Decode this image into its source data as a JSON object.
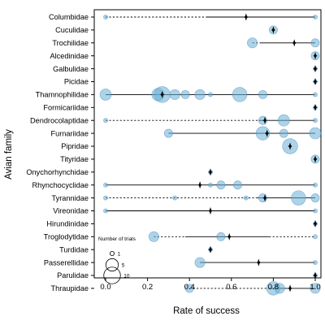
{
  "chart_data": {
    "type": "scatter",
    "xlabel": "Rate of success",
    "ylabel": "Avian family",
    "xlim": [
      0,
      1
    ],
    "xticks": [
      "0.0",
      "0.2",
      "0.4",
      "0.6",
      "0.8",
      "1.0"
    ],
    "xtick_values": [
      0,
      0.2,
      0.4,
      0.6,
      0.8,
      1.0
    ],
    "grid": false,
    "legend": {
      "title": "Number of trials",
      "placement": "bottom-left",
      "entries": [
        {
          "label": "1",
          "size": 1
        },
        {
          "label": "5",
          "size": 5
        },
        {
          "label": "10",
          "size": 10
        }
      ]
    },
    "colors": {
      "point_fill": "#6aaed6",
      "point_stroke": "#3a85c0",
      "median_marker": "#000000",
      "line": "#000000"
    },
    "families": [
      {
        "name": "Columbidae",
        "median": 0.67,
        "range": [
          0,
          1
        ],
        "dashed_to": 0.48,
        "points": [
          {
            "x": 0,
            "n": 1
          },
          {
            "x": 1,
            "n": 1
          }
        ]
      },
      {
        "name": "Cuculidae",
        "median": 0.8,
        "range": [
          0.8,
          0.8
        ],
        "dashed_to": null,
        "points": [
          {
            "x": 0.8,
            "n": 2
          }
        ]
      },
      {
        "name": "Trochilidae",
        "median": 0.9,
        "range": [
          0.7,
          1
        ],
        "dashed_to": 0.74,
        "points": [
          {
            "x": 0.7,
            "n": 3
          },
          {
            "x": 1,
            "n": 2
          }
        ]
      },
      {
        "name": "Alcedinidae",
        "median": 1.0,
        "range": [
          1,
          1
        ],
        "dashed_to": null,
        "points": [
          {
            "x": 1,
            "n": 2
          }
        ]
      },
      {
        "name": "Galbulidae",
        "median": 1.0,
        "range": [
          1,
          1
        ],
        "dashed_to": null,
        "points": [
          {
            "x": 1,
            "n": 1
          }
        ]
      },
      {
        "name": "Picidae",
        "median": 1.0,
        "range": [
          1,
          1
        ],
        "dashed_to": null,
        "points": [
          {
            "x": 1,
            "n": 1
          }
        ]
      },
      {
        "name": "Thamnophilidae",
        "median": 0.27,
        "range": [
          0,
          1
        ],
        "dashed_to": null,
        "points": [
          {
            "x": 0,
            "n": 4
          },
          {
            "x": 0.25,
            "n": 5
          },
          {
            "x": 0.27,
            "n": 9
          },
          {
            "x": 0.33,
            "n": 3
          },
          {
            "x": 0.38,
            "n": 2
          },
          {
            "x": 0.45,
            "n": 3
          },
          {
            "x": 0.5,
            "n": 1
          },
          {
            "x": 0.64,
            "n": 7
          },
          {
            "x": 0.75,
            "n": 2
          },
          {
            "x": 1,
            "n": 1
          }
        ]
      },
      {
        "name": "Formicariidae",
        "median": 1.0,
        "range": [
          1,
          1
        ],
        "dashed_to": null,
        "points": [
          {
            "x": 1,
            "n": 1
          }
        ]
      },
      {
        "name": "Dendrocolaptidae",
        "median": 0.76,
        "range": [
          0,
          1
        ],
        "dashed_to": 0.73,
        "points": [
          {
            "x": 0,
            "n": 1
          },
          {
            "x": 0.75,
            "n": 2
          },
          {
            "x": 0.85,
            "n": 4
          },
          {
            "x": 1,
            "n": 1
          }
        ]
      },
      {
        "name": "Furnariidae",
        "median": 0.77,
        "range": [
          0.3,
          1
        ],
        "dashed_to": null,
        "points": [
          {
            "x": 0.3,
            "n": 2
          },
          {
            "x": 0.75,
            "n": 6
          },
          {
            "x": 0.85,
            "n": 2
          },
          {
            "x": 1,
            "n": 4
          }
        ]
      },
      {
        "name": "Pipridae",
        "median": 0.88,
        "range": [
          0.88,
          0.88
        ],
        "dashed_to": null,
        "points": [
          {
            "x": 0.88,
            "n": 8
          }
        ]
      },
      {
        "name": "Tityridae",
        "median": 1.0,
        "range": [
          1,
          1
        ],
        "dashed_to": null,
        "points": [
          {
            "x": 1,
            "n": 2
          }
        ]
      },
      {
        "name": "Onychorhynchidae",
        "median": 0.5,
        "range": [
          0.5,
          0.5
        ],
        "dashed_to": null,
        "points": [
          {
            "x": 0.5,
            "n": 1
          }
        ]
      },
      {
        "name": "Rhynchocyclidae",
        "median": 0.45,
        "range": [
          0,
          1
        ],
        "dashed_to": null,
        "points": [
          {
            "x": 0,
            "n": 1
          },
          {
            "x": 0.5,
            "n": 1
          },
          {
            "x": 0.55,
            "n": 2
          },
          {
            "x": 0.63,
            "n": 2
          },
          {
            "x": 1,
            "n": 1
          }
        ]
      },
      {
        "name": "Tyrannidae",
        "median": 0.76,
        "range": [
          0,
          1
        ],
        "dashed_to": 0.72,
        "points": [
          {
            "x": 0,
            "n": 1
          },
          {
            "x": 0.33,
            "n": 1
          },
          {
            "x": 0.67,
            "n": 1
          },
          {
            "x": 0.75,
            "n": 2
          },
          {
            "x": 0.92,
            "n": 7
          },
          {
            "x": 1,
            "n": 2
          }
        ]
      },
      {
        "name": "Vireonidae",
        "median": 0.5,
        "range": [
          0,
          1
        ],
        "dashed_to": null,
        "points": [
          {
            "x": 0,
            "n": 1
          },
          {
            "x": 1,
            "n": 1
          }
        ]
      },
      {
        "name": "Hirundinidae",
        "median": 1.0,
        "range": [
          1,
          1
        ],
        "dashed_to": null,
        "points": [
          {
            "x": 1,
            "n": 1
          }
        ]
      },
      {
        "name": "Troglodytidae",
        "median": 0.59,
        "range": [
          0.23,
          1
        ],
        "dashed_to": 0.38,
        "dashed_from": 0.78,
        "points": [
          {
            "x": 0.23,
            "n": 3
          },
          {
            "x": 0.55,
            "n": 2
          },
          {
            "x": 1,
            "n": 1
          }
        ]
      },
      {
        "name": "Turdidae",
        "median": 0.5,
        "range": [
          0.5,
          0.5
        ],
        "dashed_to": null,
        "points": [
          {
            "x": 0.5,
            "n": 1
          }
        ]
      },
      {
        "name": "Passerellidae",
        "median": 0.73,
        "range": [
          0.45,
          1
        ],
        "dashed_to": null,
        "points": [
          {
            "x": 0.45,
            "n": 3
          },
          {
            "x": 1,
            "n": 1
          }
        ]
      },
      {
        "name": "Parulidae",
        "median": 1.0,
        "range": [
          1,
          1
        ],
        "dashed_to": null,
        "points": [
          {
            "x": 1,
            "n": 1
          }
        ]
      },
      {
        "name": "Thraupidae",
        "median": 0.88,
        "range": [
          0.4,
          1
        ],
        "dashed_to": 0.78,
        "points": [
          {
            "x": 0.4,
            "n": 2
          },
          {
            "x": 0.8,
            "n": 6
          },
          {
            "x": 0.83,
            "n": 3
          },
          {
            "x": 1,
            "n": 3
          }
        ]
      }
    ]
  }
}
